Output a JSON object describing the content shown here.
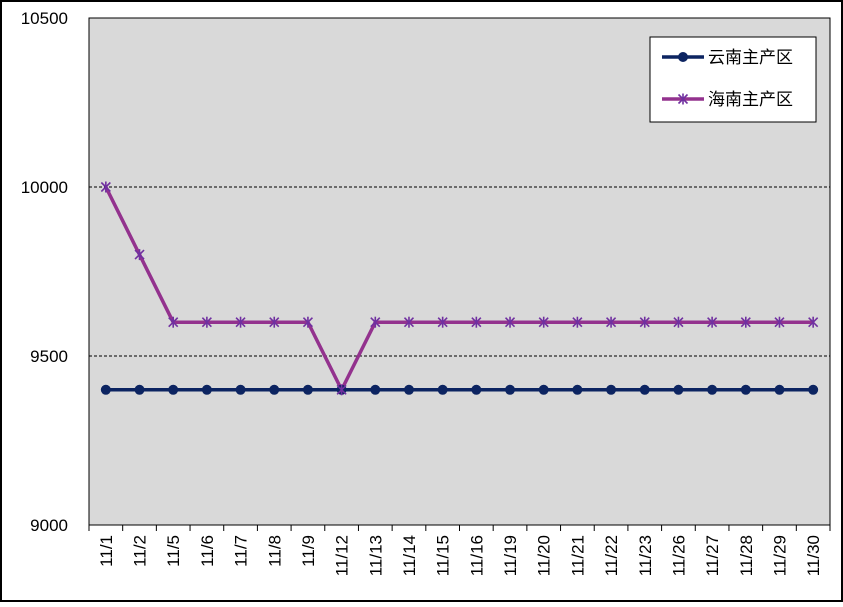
{
  "chart_data": {
    "type": "line",
    "categories": [
      "11/1",
      "11/2",
      "11/5",
      "11/6",
      "11/7",
      "11/8",
      "11/9",
      "11/12",
      "11/13",
      "11/14",
      "11/15",
      "11/16",
      "11/19",
      "11/20",
      "11/21",
      "11/22",
      "11/23",
      "11/26",
      "11/27",
      "11/28",
      "11/29",
      "11/30"
    ],
    "series": [
      {
        "name": "云南主产区",
        "color": "#0c2461",
        "values": [
          9400,
          9400,
          9400,
          9400,
          9400,
          9400,
          9400,
          9400,
          9400,
          9400,
          9400,
          9400,
          9400,
          9400,
          9400,
          9400,
          9400,
          9400,
          9400,
          9400,
          9400,
          9400
        ]
      },
      {
        "name": "海南主产区",
        "color": "#93328e",
        "values": [
          10000,
          9800,
          9600,
          9600,
          9600,
          9600,
          9600,
          9400,
          9600,
          9600,
          9600,
          9600,
          9600,
          9600,
          9600,
          9600,
          9600,
          9600,
          9600,
          9600,
          9600,
          9600
        ]
      }
    ],
    "ylim": [
      9000,
      10500
    ],
    "yticks": [
      9000,
      9500,
      10000,
      10500
    ],
    "grid": true,
    "legend": "top-right"
  }
}
